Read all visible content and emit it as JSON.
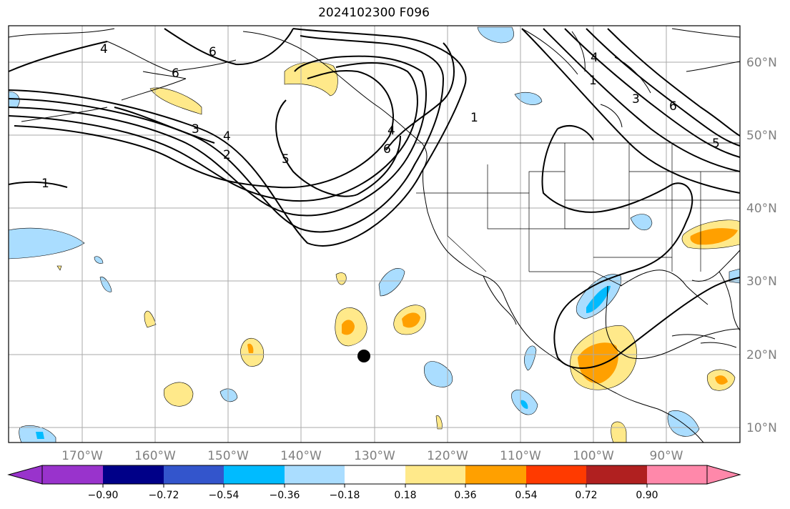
{
  "title": "2024102300 F096",
  "map": {
    "lon_labels": [
      "170°W",
      "160°W",
      "150°W",
      "140°W",
      "130°W",
      "120°W",
      "110°W",
      "100°W",
      "90°W"
    ],
    "lat_labels": [
      "60°N",
      "50°N",
      "40°N",
      "30°N",
      "20°N",
      "10°N"
    ],
    "contour_labels": [
      "4",
      "6",
      "6",
      "4",
      "1",
      "3",
      "6",
      "5",
      "3",
      "4",
      "2",
      "5",
      "6",
      "4",
      "1",
      "1"
    ]
  },
  "colorbar": {
    "ticks": [
      "−0.90",
      "−0.72",
      "−0.54",
      "−0.36",
      "−0.18",
      "0.18",
      "0.36",
      "0.54",
      "0.72",
      "0.90"
    ],
    "colors": [
      "#9933cc",
      "#000088",
      "#3355cc",
      "#00bbff",
      "#aaddff",
      "#ffffff",
      "#ffe98a",
      "#ffa000",
      "#ff3a00",
      "#b02020",
      "#ff88aa"
    ]
  },
  "colors": {
    "light_blue": "#aaddff",
    "cyan": "#00bbff",
    "yellow": "#ffe98a",
    "orange": "#ffa000",
    "grid": "#aaaaaa"
  }
}
